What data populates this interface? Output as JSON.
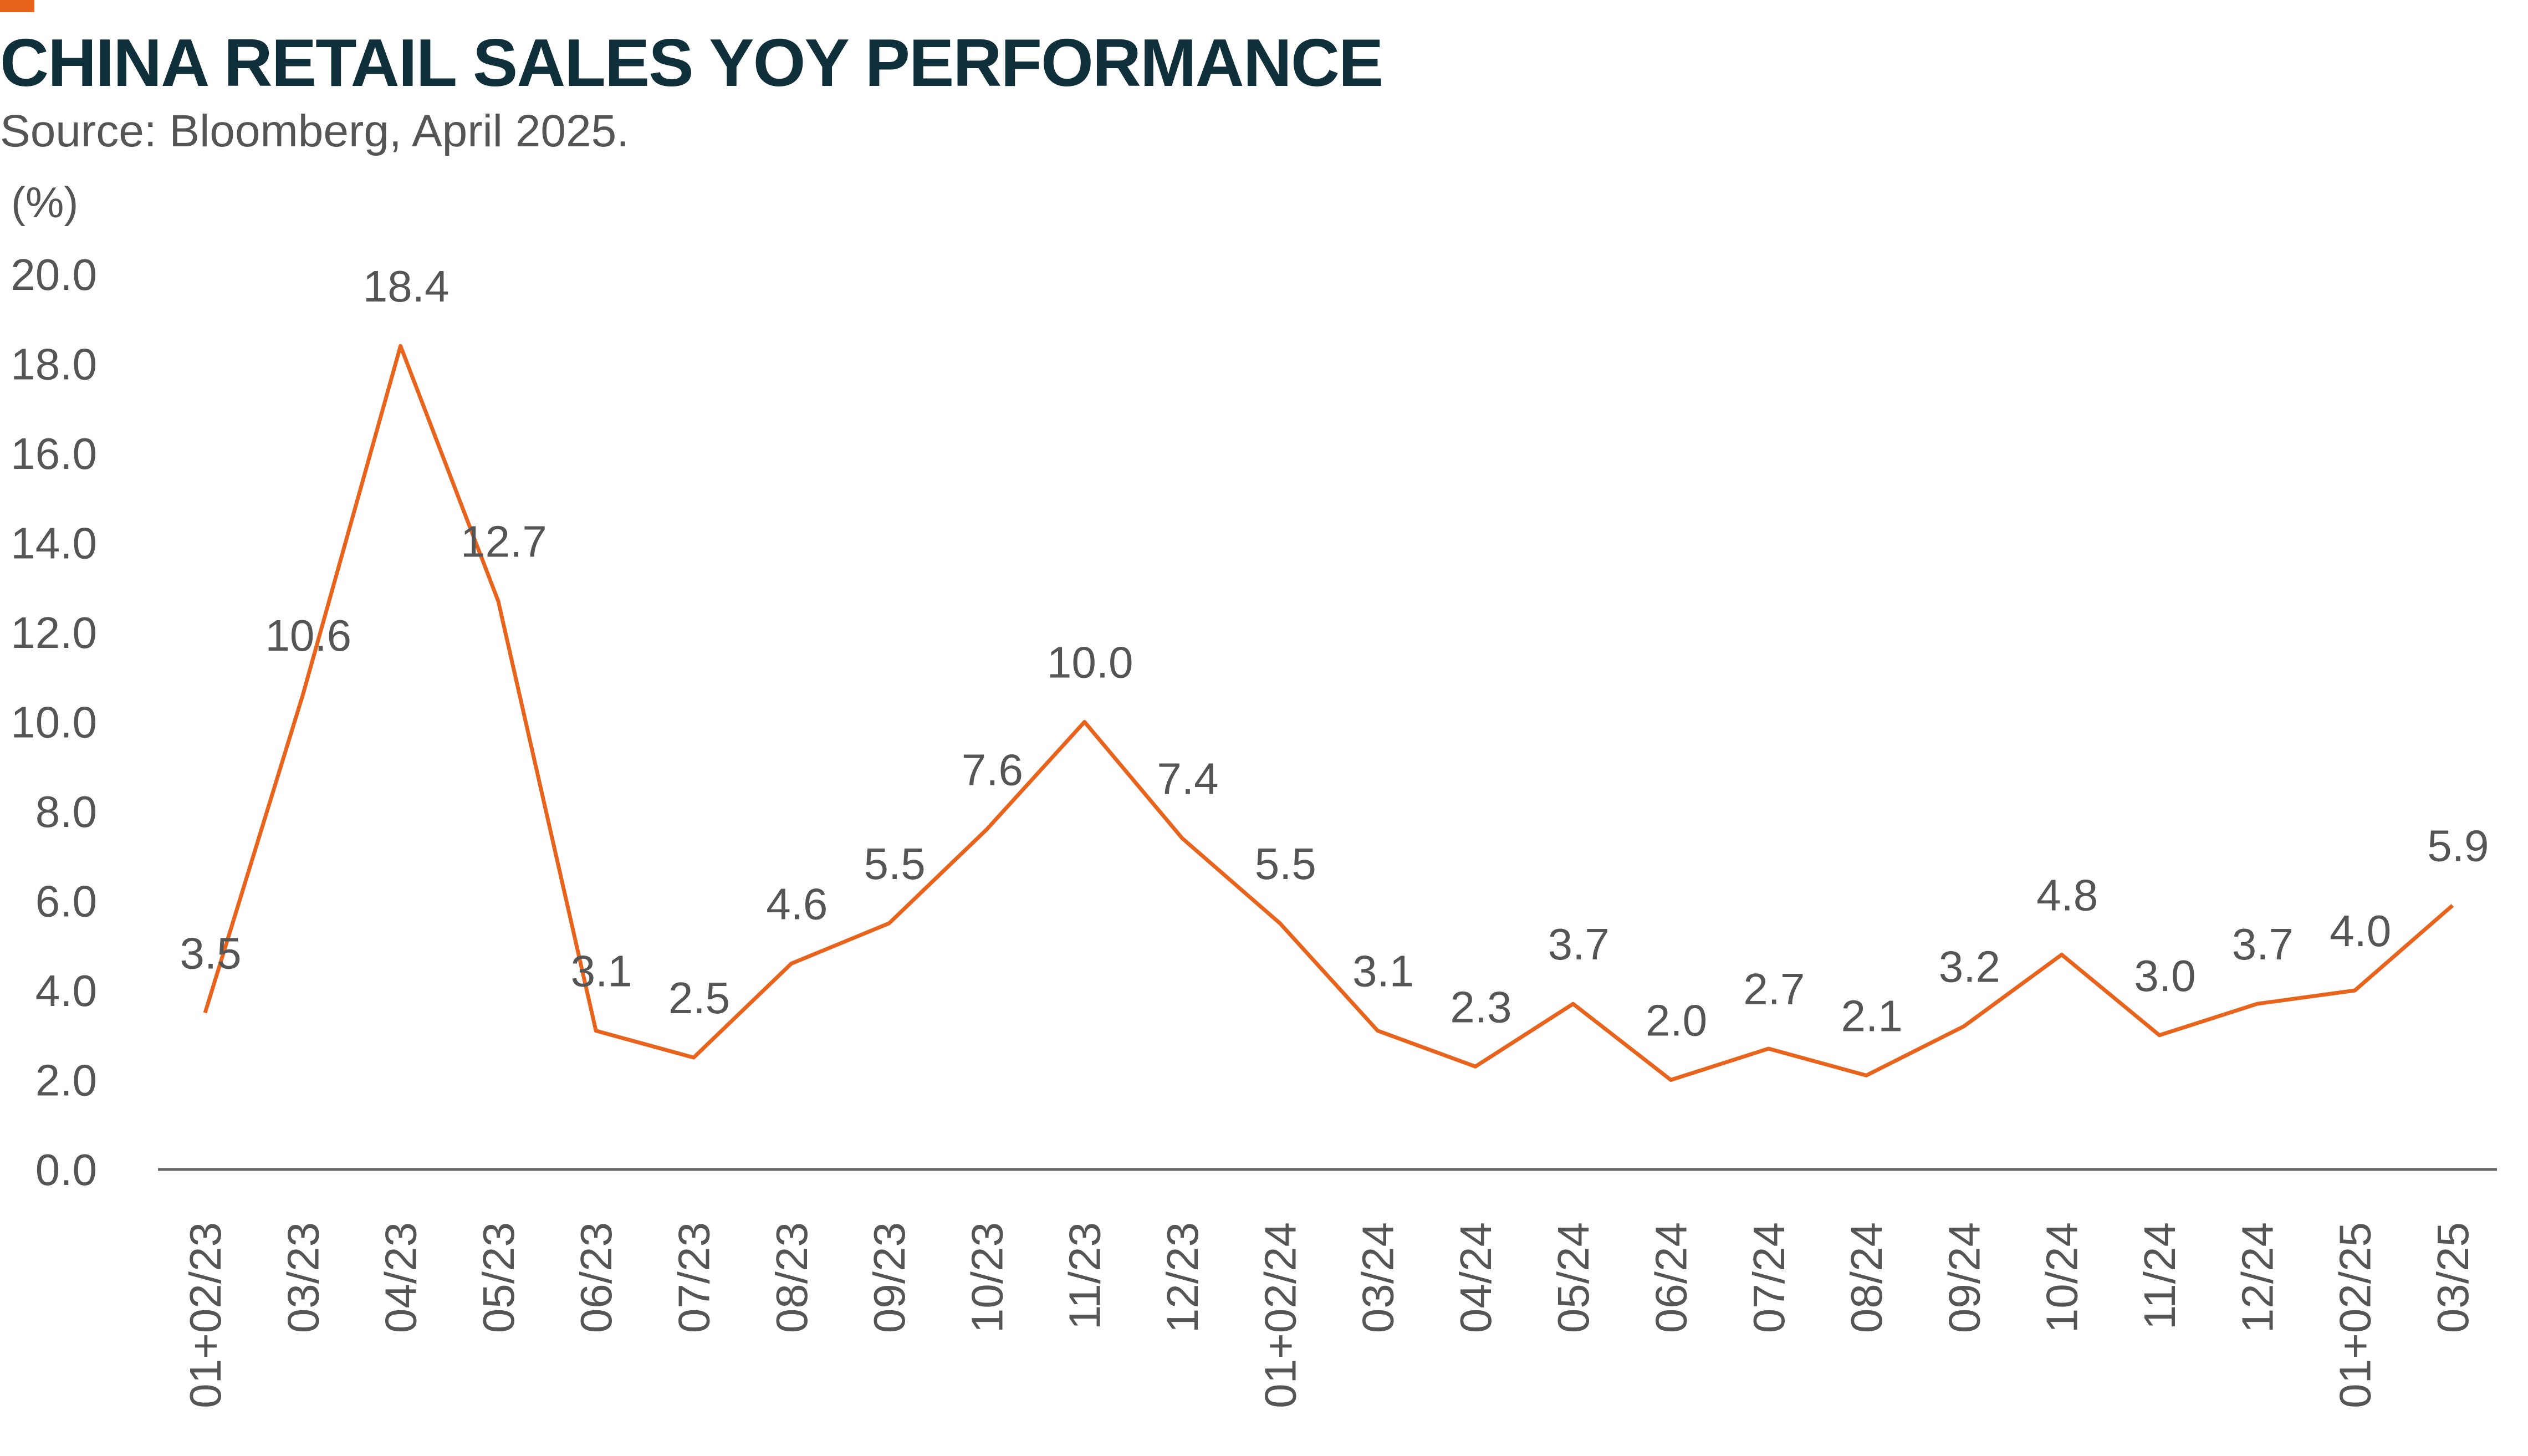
{
  "header": {
    "title": "CHINA RETAIL SALES YOY PERFORMANCE",
    "subtitle": "Source: Bloomberg, April 2025."
  },
  "colors": {
    "accent": "#e8641d",
    "line": "#e8641d",
    "title": "#0f2f3a",
    "text": "#555555",
    "axis": "#666666"
  },
  "chart_data": {
    "type": "line",
    "title": "CHINA RETAIL SALES YOY PERFORMANCE",
    "ylabel": "(%)",
    "xlabel": "",
    "ylim": [
      0,
      20
    ],
    "yticks": [
      "0.0",
      "2.0",
      "4.0",
      "6.0",
      "8.0",
      "10.0",
      "12.0",
      "14.0",
      "16.0",
      "18.0",
      "20.0"
    ],
    "grid": false,
    "legend": "none",
    "categories": [
      "01+02/23",
      "03/23",
      "04/23",
      "05/23",
      "06/23",
      "07/23",
      "08/23",
      "09/23",
      "10/23",
      "11/23",
      "12/23",
      "01+02/24",
      "03/24",
      "04/24",
      "05/24",
      "06/24",
      "07/24",
      "08/24",
      "09/24",
      "10/24",
      "11/24",
      "12/24",
      "01+02/25",
      "03/25"
    ],
    "series": [
      {
        "values": [
          3.5,
          10.6,
          18.4,
          12.7,
          3.1,
          2.5,
          4.6,
          5.5,
          7.6,
          10.0,
          7.4,
          5.5,
          3.1,
          2.3,
          3.7,
          2.0,
          2.7,
          2.1,
          3.2,
          4.8,
          3.0,
          3.7,
          4.0,
          5.9
        ],
        "labels": [
          "3.5",
          "10.6",
          "18.4",
          "12.7",
          "3.1",
          "2.5",
          "4.6",
          "5.5",
          "7.6",
          "10.0",
          "7.4",
          "5.5",
          "3.1",
          "2.3",
          "3.7",
          "2.0",
          "2.7",
          "2.1",
          "3.2",
          "4.8",
          "3.0",
          "3.7",
          "4.0",
          "5.9"
        ]
      }
    ]
  }
}
